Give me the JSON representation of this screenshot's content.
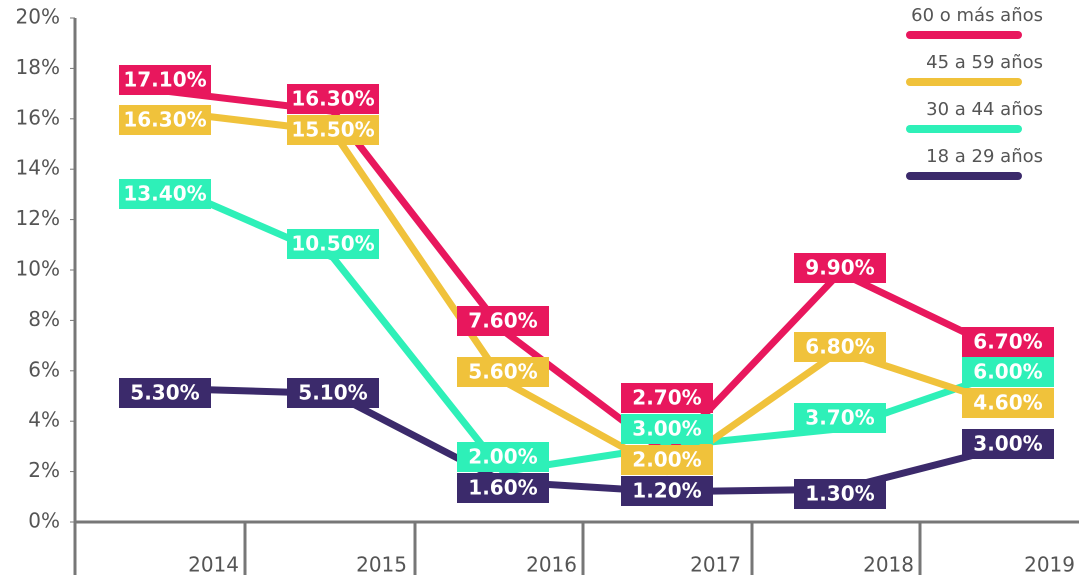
{
  "chart_data": {
    "type": "line",
    "categories": [
      "2014",
      "2015",
      "2016",
      "2017",
      "2018",
      "2019"
    ],
    "series": [
      {
        "name": "60 o más años",
        "color": "#e8175d",
        "values": [
          17.1,
          16.3,
          7.6,
          2.7,
          9.9,
          6.7
        ],
        "value_labels": [
          "17.10%",
          "16.30%",
          "7.60%",
          "2.70%",
          "9.90%",
          "6.70%"
        ]
      },
      {
        "name": "45 a 59 años",
        "color": "#f0c23b",
        "values": [
          16.3,
          15.5,
          5.6,
          2.0,
          6.8,
          4.6
        ],
        "value_labels": [
          "16.30%",
          "15.50%",
          "5.60%",
          "2.00%",
          "6.80%",
          "4.60%"
        ]
      },
      {
        "name": "30 a 44 años",
        "color": "#2ef0b8",
        "values": [
          13.4,
          10.5,
          2.0,
          3.0,
          3.7,
          6.0
        ],
        "value_labels": [
          "13.40%",
          "10.50%",
          "2.00%",
          "3.00%",
          "3.70%",
          "6.00%"
        ]
      },
      {
        "name": "18 a 29 años",
        "color": "#3b2a6b",
        "values": [
          5.3,
          5.1,
          1.6,
          1.2,
          1.3,
          3.0
        ],
        "value_labels": [
          "5.30%",
          "5.10%",
          "1.60%",
          "1.20%",
          "1.30%",
          "3.00%"
        ]
      }
    ],
    "ylim": [
      0,
      20
    ],
    "yticks": [
      {
        "value": 0,
        "label": "0%"
      },
      {
        "value": 2,
        "label": "2%"
      },
      {
        "value": 4,
        "label": "4%"
      },
      {
        "value": 6,
        "label": "6%"
      },
      {
        "value": 8,
        "label": "8%"
      },
      {
        "value": 10,
        "label": "10%"
      },
      {
        "value": 12,
        "label": "12%"
      },
      {
        "value": 14,
        "label": "14%"
      },
      {
        "value": 16,
        "label": "16%"
      },
      {
        "value": 18,
        "label": "18%"
      },
      {
        "value": 20,
        "label": "20%"
      }
    ],
    "legend": "top-right"
  }
}
